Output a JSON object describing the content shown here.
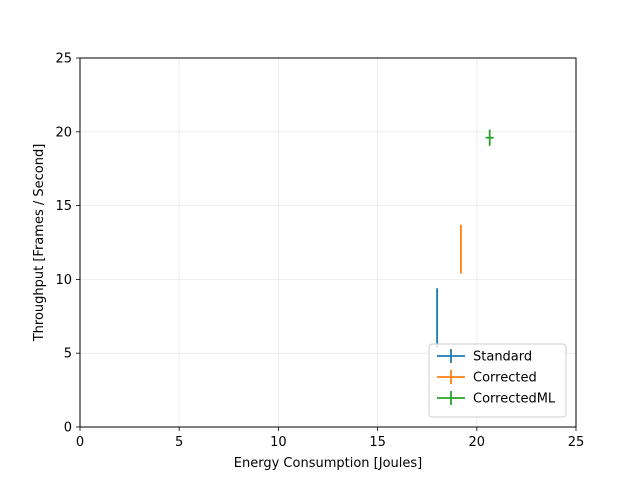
{
  "chart_data": {
    "type": "scatter",
    "title": "",
    "xlabel": "Energy Consumption [Joules]",
    "ylabel": "Throughput [Frames / Second]",
    "xlim": [
      0,
      25
    ],
    "ylim": [
      0,
      25
    ],
    "xticks": [
      0,
      5,
      10,
      15,
      20,
      25
    ],
    "yticks": [
      0,
      5,
      10,
      15,
      20,
      25
    ],
    "grid": true,
    "legend_position": "lower-right",
    "series": [
      {
        "name": "Standard",
        "color": "#1f77b4",
        "x": 18.0,
        "y": 7.4,
        "xerr": 0.02,
        "yerr": 2.0
      },
      {
        "name": "Corrected",
        "color": "#ff7f0e",
        "x": 19.2,
        "y": 12.05,
        "xerr": 0.02,
        "yerr": 1.65
      },
      {
        "name": "CorrectedML",
        "color": "#2ca02c",
        "x": 20.65,
        "y": 19.6,
        "xerr": 0.2,
        "yerr": 0.55
      }
    ]
  }
}
